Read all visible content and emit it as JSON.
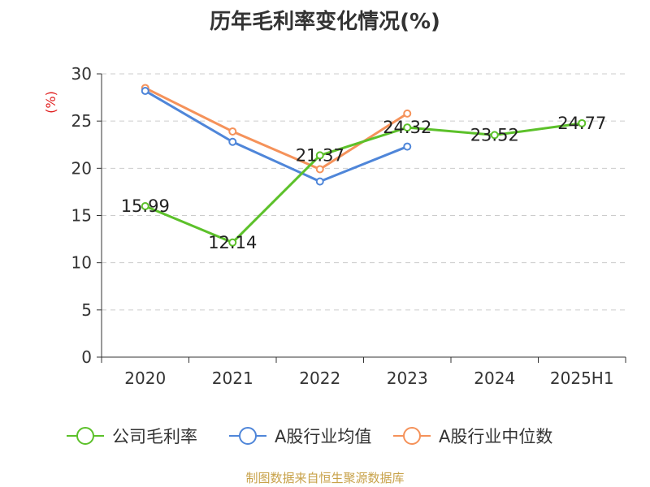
{
  "chart_data": {
    "type": "line",
    "title": "历年毛利率变化情况(%)",
    "ylabel": "(%)",
    "categories": [
      "2020",
      "2021",
      "2022",
      "2023",
      "2024",
      "2025H1"
    ],
    "ylim": [
      0,
      30
    ],
    "yticks": [
      0,
      5,
      10,
      15,
      20,
      25,
      30
    ],
    "grid": true,
    "legend_position": "bottom",
    "series": [
      {
        "name": "公司毛利率",
        "color": "#5cc12a",
        "values": [
          15.99,
          12.14,
          21.37,
          24.32,
          23.52,
          24.77
        ],
        "labels": [
          "15.99",
          "12.14",
          "21.37",
          "24.32",
          "23.52",
          "24.77"
        ]
      },
      {
        "name": "A股行业均值",
        "color": "#4f86d9",
        "values": [
          28.2,
          22.8,
          18.6,
          22.3,
          null,
          null
        ]
      },
      {
        "name": "A股行业中位数",
        "color": "#f5925a",
        "values": [
          28.5,
          23.9,
          19.9,
          25.8,
          null,
          null
        ]
      }
    ]
  },
  "source": "制图数据来自恒生聚源数据库"
}
